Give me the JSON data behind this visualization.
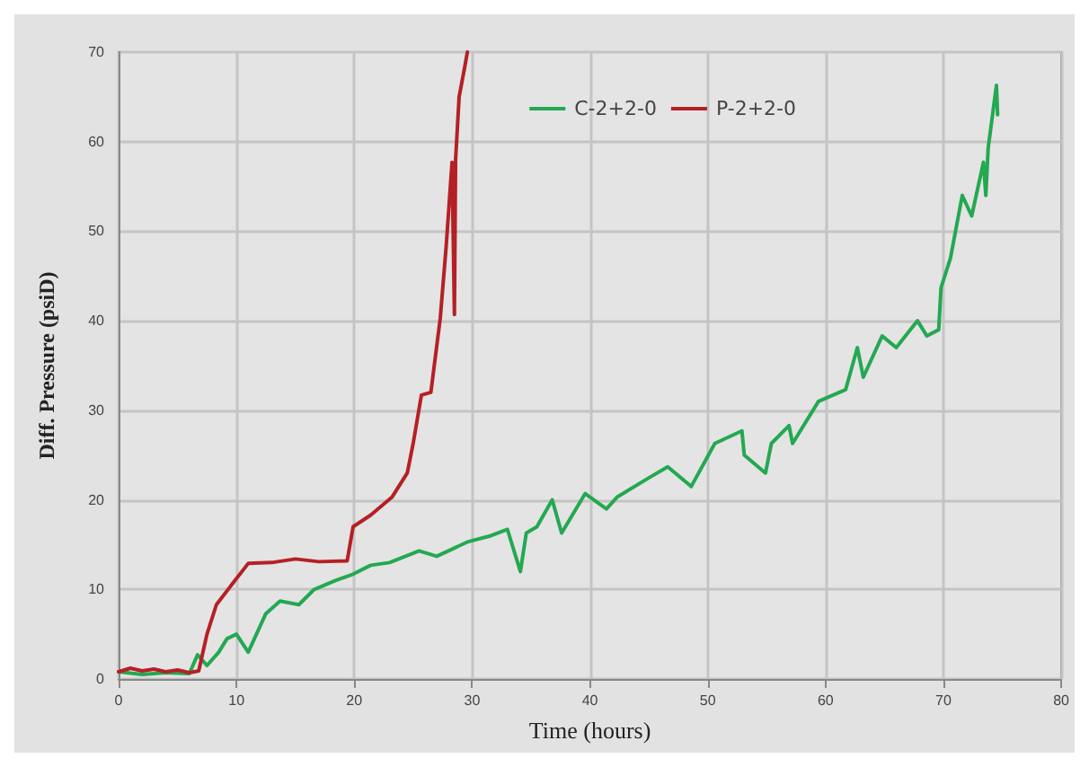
{
  "chart_data": {
    "type": "line",
    "xlabel": "Time (hours)",
    "ylabel": "Diff. Pressure (psiD)",
    "xlim": [
      0,
      80
    ],
    "xticks": [
      0,
      10,
      20,
      30,
      40,
      50,
      60,
      70,
      80
    ],
    "ylim": [
      0,
      70
    ],
    "yticks": [
      0,
      10,
      20,
      30,
      40,
      50,
      60,
      70
    ],
    "grid": true,
    "legend": "top right",
    "marker": "none",
    "line_style": "solid",
    "series": [
      {
        "name": "C-2+2-0",
        "color": "#24a852",
        "x": [
          0,
          2,
          4,
          6,
          6.7,
          7.5,
          8.5,
          9.2,
          10,
          11,
          12.5,
          13.7,
          15.3,
          16.6,
          18.4,
          19.9,
          21.4,
          23,
          25.5,
          27,
          29.6,
          31.6,
          33,
          34.1,
          34.6,
          35.5,
          36.8,
          37.6,
          39.6,
          41.4,
          42.3,
          44.8,
          46.6,
          48.6,
          50.6,
          52.9,
          53.1,
          54.9,
          55.4,
          56.9,
          57.2,
          59.4,
          61.7,
          62.7,
          63.2,
          64.8,
          66,
          67.8,
          68.6,
          69.6,
          69.8,
          70.6,
          71.6,
          72.4,
          73.4,
          73.6,
          73.8,
          74.5,
          74.6
        ],
        "values": [
          0.8,
          0.5,
          0.7,
          0.6,
          2.7,
          1.5,
          3,
          4.5,
          5,
          3,
          7.3,
          8.7,
          8.3,
          10,
          11,
          11.7,
          12.7,
          13,
          14.3,
          13.7,
          15.3,
          16,
          16.7,
          12,
          16.3,
          17,
          20,
          16.3,
          20.7,
          19,
          20.3,
          22.3,
          23.7,
          21.5,
          26.3,
          27.7,
          25,
          23,
          26.3,
          28.3,
          26.3,
          31,
          32.3,
          37,
          33.7,
          38.3,
          37,
          40,
          38.3,
          39,
          43.7,
          47,
          54,
          51.7,
          57.7,
          54,
          59.3,
          66.3,
          63
        ]
      },
      {
        "name": "P-2+2-0",
        "color": "#b52025",
        "x": [
          0,
          1,
          2,
          3,
          4,
          5,
          6,
          6.8,
          7.5,
          8.3,
          9.7,
          11,
          13,
          15,
          17,
          19.4,
          19.9,
          21.4,
          23.2,
          24.5,
          25,
          25.7,
          26.5,
          27.3,
          27.8,
          28.3,
          28.5,
          28.6,
          28.9,
          29.4,
          29.6
        ],
        "values": [
          0.8,
          1.2,
          0.9,
          1.1,
          0.8,
          1,
          0.7,
          0.9,
          5,
          8.3,
          10.7,
          12.9,
          13,
          13.4,
          13.1,
          13.2,
          17,
          18.3,
          20.3,
          23,
          26.3,
          31.7,
          32,
          40.3,
          48.3,
          57.7,
          40.7,
          58,
          65,
          68.5,
          70
        ]
      }
    ]
  }
}
